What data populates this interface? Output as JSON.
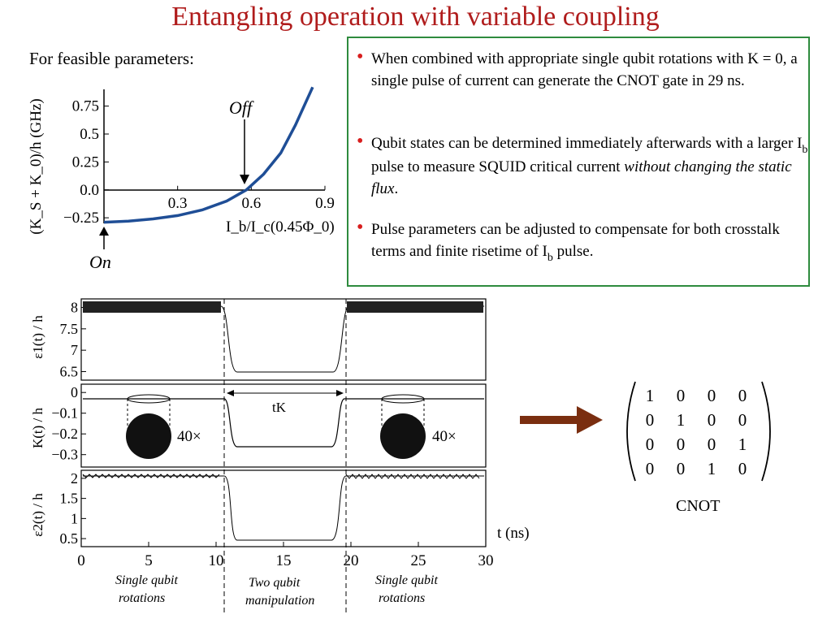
{
  "title": "Entangling operation with variable coupling",
  "feasible_label": "For feasible parameters:",
  "bullets": [
    {
      "text_a": "When combined with appropriate single qubit rotations with K = 0, a single pulse of current can generate the CNOT gate in 29 ns."
    },
    {
      "text_a": "Qubit states can be determined immediately afterwards with a larger I",
      "sub": "b",
      "text_b": " pulse to measure SQUID critical current ",
      "italic": "without changing the static flux",
      "text_c": "."
    },
    {
      "text_a": "Pulse parameters can be adjusted to compensate for both crosstalk terms and finite risetime of I",
      "sub": "b",
      "text_b": " pulse."
    }
  ],
  "top_plot": {
    "ylabel": "(K_S + K_0)/h (GHz)",
    "xlabel": "I_b/I_c(0.45Φ_0)",
    "yticks": [
      "0.75",
      "0.5",
      "0.25",
      "0.0",
      "−0.25"
    ],
    "xticks": [
      "0.3",
      "0.6",
      "0.9"
    ],
    "off_label": "Off",
    "on_label": "On",
    "curve_color": "#1f4e96",
    "chart_data": {
      "type": "line",
      "x": [
        0.0,
        0.1,
        0.2,
        0.3,
        0.4,
        0.5,
        0.58,
        0.65,
        0.72,
        0.78,
        0.85
      ],
      "y": [
        -0.29,
        -0.28,
        -0.26,
        -0.23,
        -0.18,
        -0.1,
        0.0,
        0.14,
        0.33,
        0.58,
        0.92
      ],
      "xlim": [
        0.0,
        0.9
      ],
      "ylim": [
        -0.3,
        0.9
      ]
    }
  },
  "pulse_plots": {
    "panels": [
      {
        "ylabel": "ε1(t) / h",
        "yticks": [
          "8",
          "7.5",
          "7",
          "6.5"
        ]
      },
      {
        "ylabel": "K(t) / h",
        "yticks": [
          "0",
          "−0.1",
          "−0.2",
          "−0.3"
        ]
      },
      {
        "ylabel": "ε2(t) / h",
        "yticks": [
          "2",
          "1.5",
          "1",
          "0.5"
        ]
      }
    ],
    "xticks": [
      "0",
      "5",
      "10",
      "15",
      "20",
      "25",
      "30"
    ],
    "xlabel": "t (ns)",
    "tk_label": "tK",
    "zoom_label_left": "40×",
    "zoom_label_right": "40×",
    "region_labels": [
      {
        "line1": "Single qubit",
        "line2": "rotations"
      },
      {
        "line1": "Two qubit",
        "line2": "manipulation"
      },
      {
        "line1": "Single qubit",
        "line2": "rotations"
      }
    ]
  },
  "arrow_color": "#7a2e10",
  "matrix": [
    [
      "1",
      "0",
      "0",
      "0"
    ],
    [
      "0",
      "1",
      "0",
      "0"
    ],
    [
      "0",
      "0",
      "0",
      "1"
    ],
    [
      "0",
      "0",
      "1",
      "0"
    ]
  ],
  "matrix_label": "CNOT"
}
